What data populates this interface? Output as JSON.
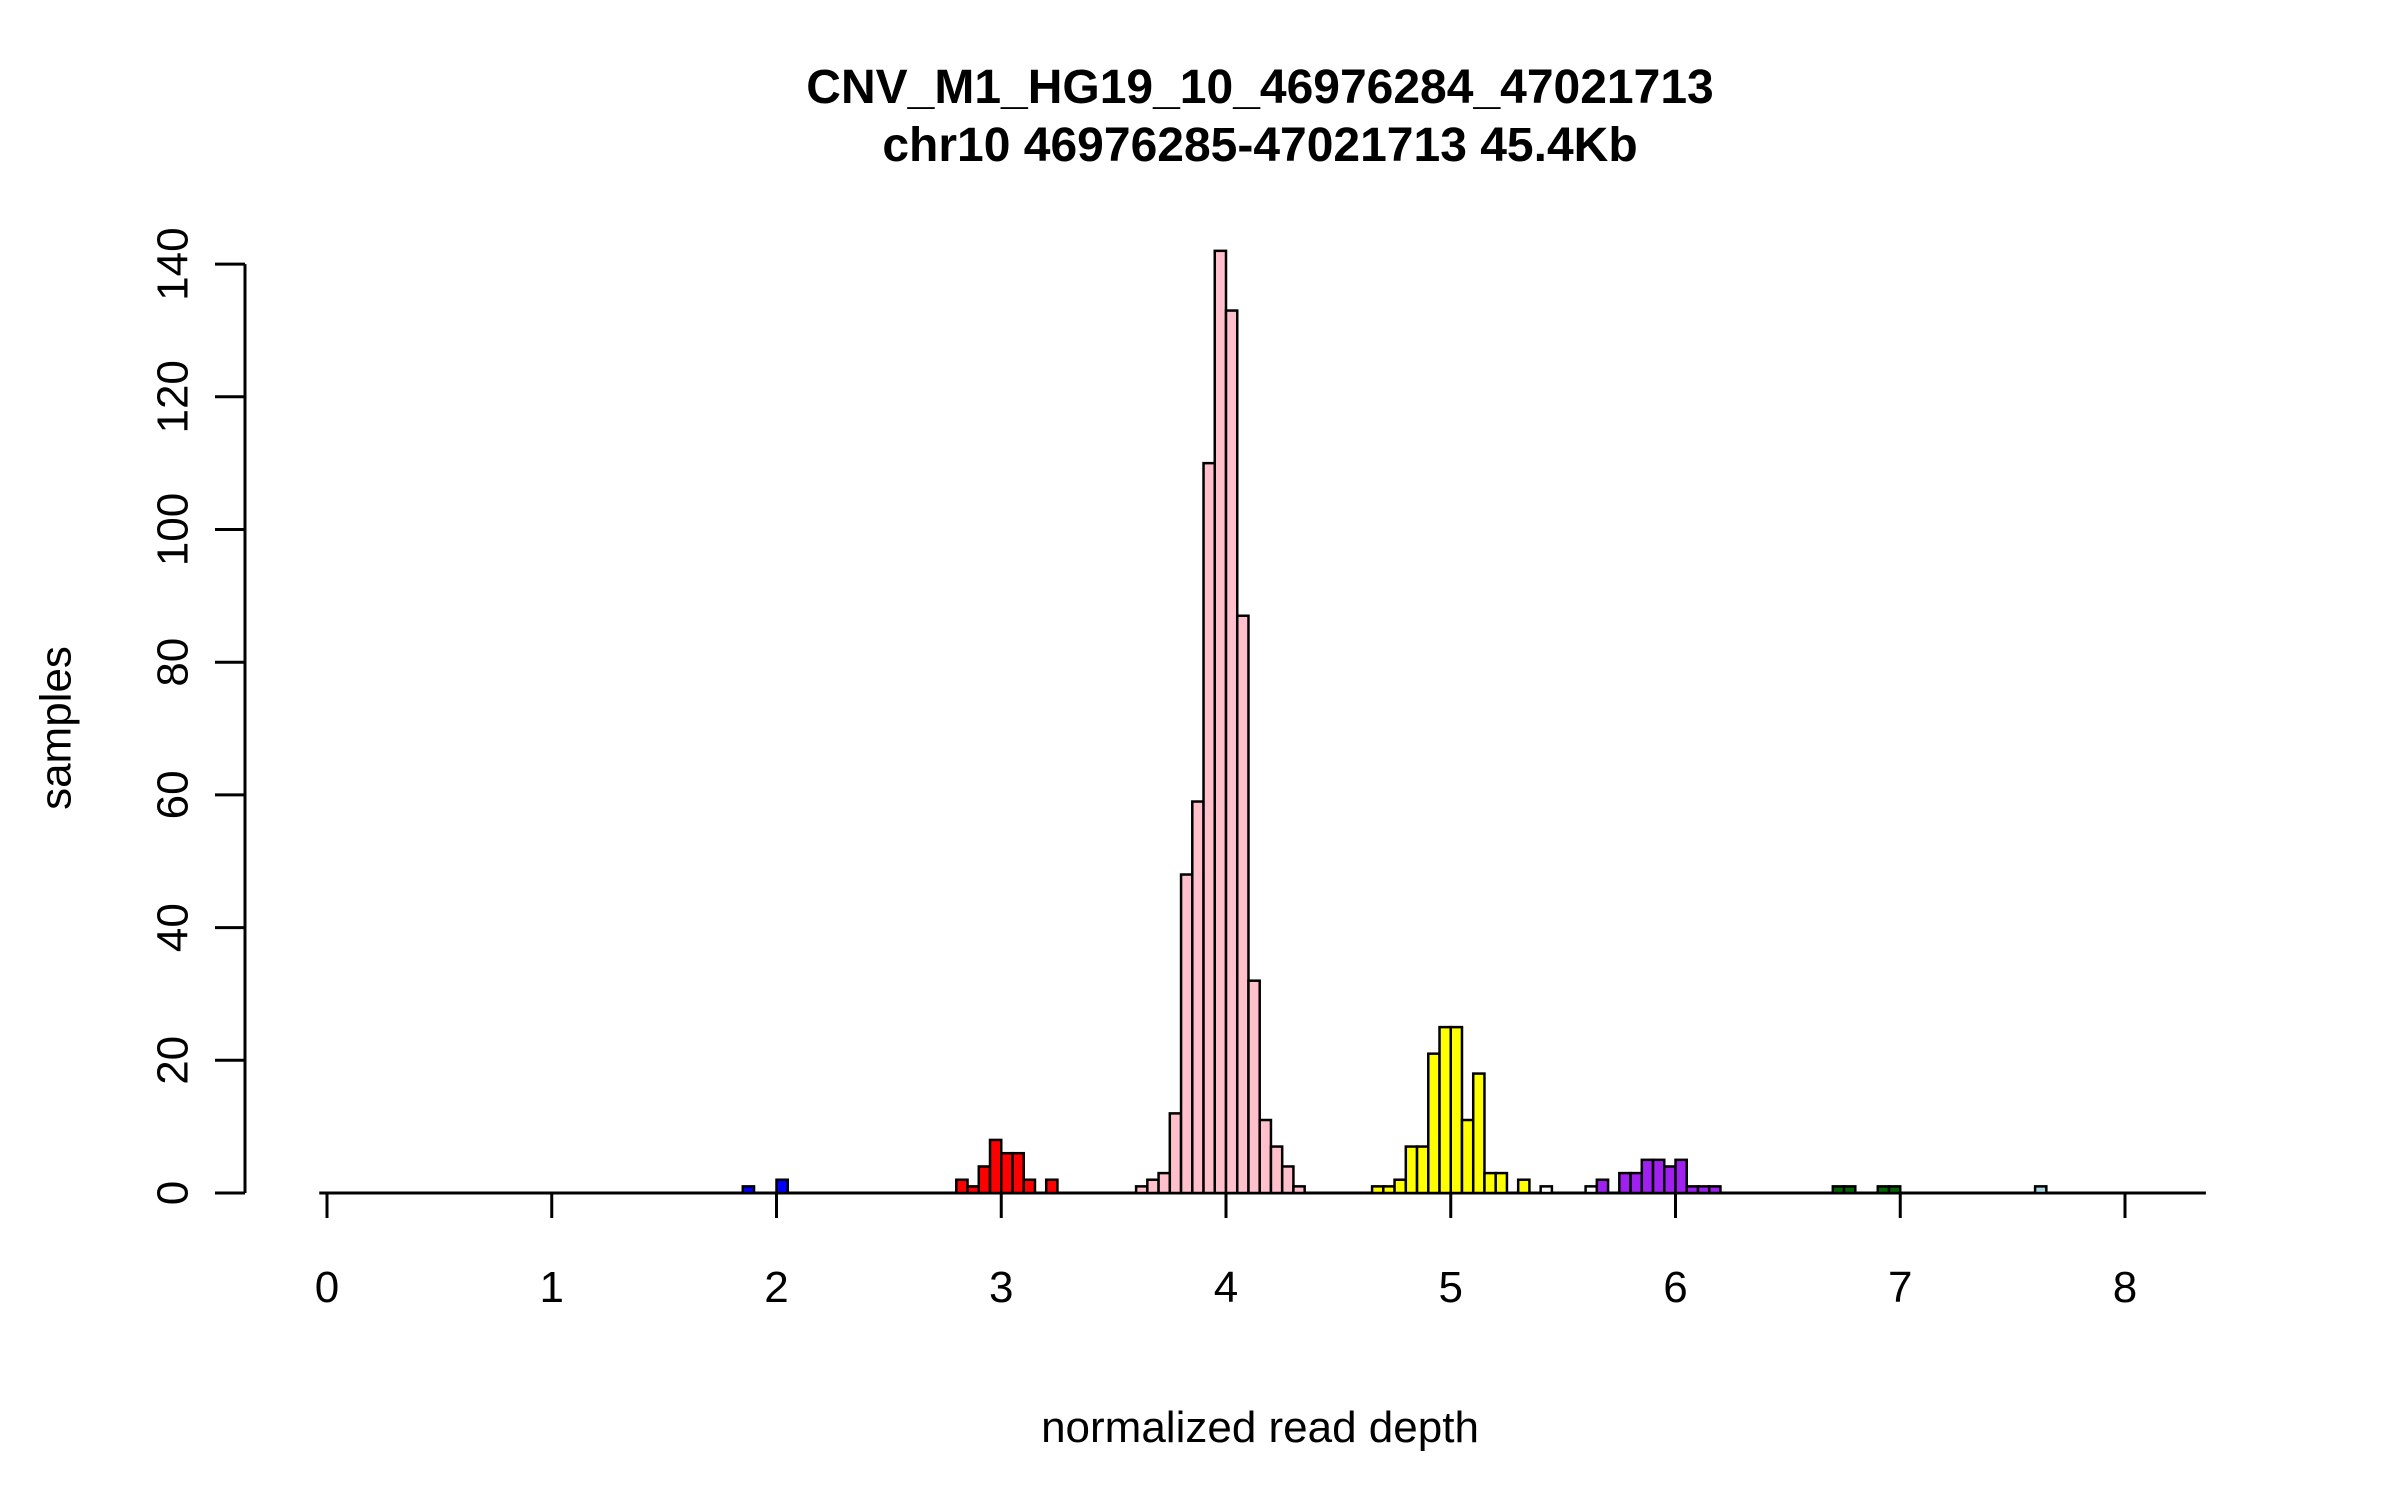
{
  "page": {
    "background": "#ffffff"
  },
  "chart_data": {
    "type": "bar",
    "subtype": "histogram",
    "title": "CNV_M1_HG19_10_46976284_47021713",
    "subtitle": "chr10 46976285-47021713 45.4Kb",
    "xlabel": "normalized read depth",
    "ylabel": "samples",
    "x_ticks": [
      0,
      1,
      2,
      3,
      4,
      5,
      6,
      7,
      8
    ],
    "y_ticks": [
      0,
      20,
      40,
      60,
      80,
      100,
      120,
      140
    ],
    "xlim": [
      0,
      8.3
    ],
    "ylim": [
      0,
      140
    ],
    "bin_width": 0.05,
    "grid": false,
    "legend": false,
    "axis_color": "#000000",
    "bar_border_color": "#000000",
    "colors": {
      "blue": "#0000FF",
      "red": "#FF0000",
      "pink": "#FFC0CB",
      "yellow": "#FFFF00",
      "white": "#FFFFFF",
      "purple": "#A020F0",
      "darkgreen": "#006400",
      "lightblue": "#ADD8E6"
    },
    "bars": [
      {
        "x": 1.85,
        "count": 1,
        "color": "blue"
      },
      {
        "x": 2.0,
        "count": 2,
        "color": "blue"
      },
      {
        "x": 2.8,
        "count": 2,
        "color": "red"
      },
      {
        "x": 2.85,
        "count": 1,
        "color": "red"
      },
      {
        "x": 2.9,
        "count": 4,
        "color": "red"
      },
      {
        "x": 2.95,
        "count": 8,
        "color": "red"
      },
      {
        "x": 3.0,
        "count": 6,
        "color": "red"
      },
      {
        "x": 3.05,
        "count": 6,
        "color": "red"
      },
      {
        "x": 3.1,
        "count": 2,
        "color": "red"
      },
      {
        "x": 3.2,
        "count": 2,
        "color": "red"
      },
      {
        "x": 3.6,
        "count": 1,
        "color": "pink"
      },
      {
        "x": 3.65,
        "count": 2,
        "color": "pink"
      },
      {
        "x": 3.7,
        "count": 3,
        "color": "pink"
      },
      {
        "x": 3.75,
        "count": 12,
        "color": "pink"
      },
      {
        "x": 3.8,
        "count": 48,
        "color": "pink"
      },
      {
        "x": 3.85,
        "count": 59,
        "color": "pink"
      },
      {
        "x": 3.9,
        "count": 110,
        "color": "pink"
      },
      {
        "x": 3.95,
        "count": 142,
        "color": "pink"
      },
      {
        "x": 4.0,
        "count": 133,
        "color": "pink"
      },
      {
        "x": 4.05,
        "count": 87,
        "color": "pink"
      },
      {
        "x": 4.1,
        "count": 32,
        "color": "pink"
      },
      {
        "x": 4.15,
        "count": 11,
        "color": "pink"
      },
      {
        "x": 4.2,
        "count": 7,
        "color": "pink"
      },
      {
        "x": 4.25,
        "count": 4,
        "color": "pink"
      },
      {
        "x": 4.3,
        "count": 1,
        "color": "pink"
      },
      {
        "x": 4.65,
        "count": 1,
        "color": "yellow"
      },
      {
        "x": 4.7,
        "count": 1,
        "color": "yellow"
      },
      {
        "x": 4.75,
        "count": 2,
        "color": "yellow"
      },
      {
        "x": 4.8,
        "count": 7,
        "color": "yellow"
      },
      {
        "x": 4.85,
        "count": 7,
        "color": "yellow"
      },
      {
        "x": 4.9,
        "count": 21,
        "color": "yellow"
      },
      {
        "x": 4.95,
        "count": 25,
        "color": "yellow"
      },
      {
        "x": 5.0,
        "count": 25,
        "color": "yellow"
      },
      {
        "x": 5.05,
        "count": 11,
        "color": "yellow"
      },
      {
        "x": 5.1,
        "count": 18,
        "color": "yellow"
      },
      {
        "x": 5.15,
        "count": 3,
        "color": "yellow"
      },
      {
        "x": 5.2,
        "count": 3,
        "color": "yellow"
      },
      {
        "x": 5.3,
        "count": 2,
        "color": "yellow"
      },
      {
        "x": 5.4,
        "count": 1,
        "color": "white"
      },
      {
        "x": 5.6,
        "count": 1,
        "color": "white"
      },
      {
        "x": 5.65,
        "count": 2,
        "color": "purple"
      },
      {
        "x": 5.75,
        "count": 3,
        "color": "purple"
      },
      {
        "x": 5.8,
        "count": 3,
        "color": "purple"
      },
      {
        "x": 5.85,
        "count": 5,
        "color": "purple"
      },
      {
        "x": 5.9,
        "count": 5,
        "color": "purple"
      },
      {
        "x": 5.95,
        "count": 4,
        "color": "purple"
      },
      {
        "x": 6.0,
        "count": 5,
        "color": "purple"
      },
      {
        "x": 6.05,
        "count": 1,
        "color": "purple"
      },
      {
        "x": 6.1,
        "count": 1,
        "color": "purple"
      },
      {
        "x": 6.15,
        "count": 1,
        "color": "purple"
      },
      {
        "x": 6.7,
        "count": 1,
        "color": "darkgreen"
      },
      {
        "x": 6.75,
        "count": 1,
        "color": "darkgreen"
      },
      {
        "x": 6.9,
        "count": 1,
        "color": "darkgreen"
      },
      {
        "x": 6.95,
        "count": 1,
        "color": "darkgreen"
      },
      {
        "x": 7.6,
        "count": 1,
        "color": "lightblue"
      }
    ]
  }
}
